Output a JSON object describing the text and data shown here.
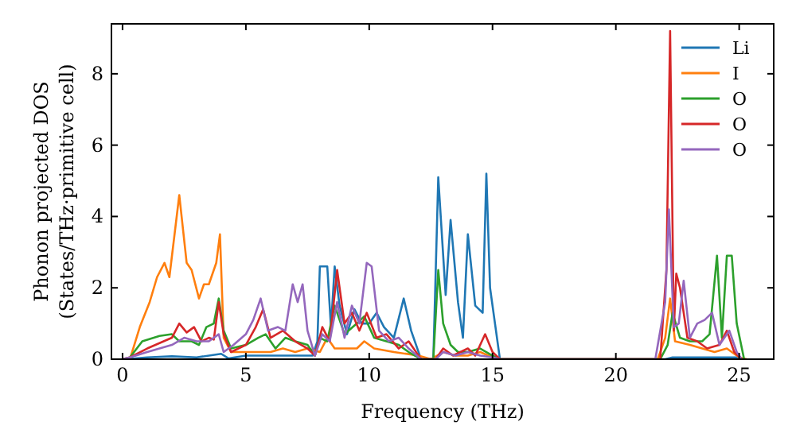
{
  "chart_data": {
    "type": "line",
    "xlabel": "Frequency (THz)",
    "ylabel": "Phonon projected DOS\n(States/THz·primitive cell)",
    "xlim": [
      -0.45,
      26.4
    ],
    "ylim": [
      0,
      9.4
    ],
    "xticks": [
      0,
      5,
      10,
      15,
      20,
      25
    ],
    "yticks": [
      0,
      2,
      4,
      6,
      8
    ],
    "grid": false,
    "legend": "top right",
    "line_style": "solid",
    "series": [
      {
        "name": "Li",
        "color": "#1f77b4",
        "x": [
          0,
          0.5,
          1,
          2,
          3,
          4,
          4.3,
          5,
          6,
          7,
          7.7,
          7.9,
          8.0,
          8.3,
          8.45,
          8.6,
          8.8,
          9.1,
          9.4,
          9.7,
          10,
          10.3,
          10.6,
          11,
          11.4,
          11.7,
          12.1,
          12.6,
          12.8,
          13.1,
          13.3,
          13.6,
          13.8,
          14.0,
          14.3,
          14.6,
          14.75,
          14.9,
          15.1,
          15.3,
          22,
          22.3,
          25,
          25.2
        ],
        "values": [
          0,
          0.02,
          0.05,
          0.08,
          0.05,
          0.15,
          0.02,
          0.1,
          0.1,
          0.1,
          0.1,
          0.5,
          2.6,
          2.6,
          0.9,
          2.6,
          1.5,
          0.7,
          1.4,
          1.0,
          1.0,
          1.3,
          0.9,
          0.6,
          1.7,
          0.8,
          0,
          0,
          5.1,
          1.8,
          3.9,
          1.6,
          0.6,
          3.5,
          1.5,
          1.3,
          5.2,
          2.0,
          1.0,
          0,
          0,
          0.05,
          0.05,
          0
        ]
      },
      {
        "name": "I",
        "color": "#ff7f0e",
        "x": [
          0,
          0.3,
          0.7,
          1.1,
          1.4,
          1.7,
          1.9,
          2.3,
          2.6,
          2.8,
          3.1,
          3.3,
          3.5,
          3.8,
          3.95,
          4.1,
          4.4,
          5,
          6,
          6.5,
          7,
          7.5,
          8,
          8.3,
          8.6,
          9,
          9.5,
          9.8,
          10.2,
          11,
          12,
          12.5,
          13,
          13.5,
          14,
          14.5,
          15,
          15.3,
          21.7,
          22,
          22.2,
          22.4,
          23,
          23.5,
          24,
          24.5,
          25,
          25.3
        ],
        "values": [
          0,
          0,
          0.9,
          1.6,
          2.3,
          2.7,
          2.3,
          4.6,
          2.7,
          2.5,
          1.7,
          2.1,
          2.1,
          2.7,
          3.5,
          0.6,
          0.2,
          0.2,
          0.2,
          0.3,
          0.2,
          0.3,
          0.2,
          0.6,
          0.3,
          0.3,
          0.3,
          0.5,
          0.3,
          0.2,
          0.1,
          0,
          0.2,
          0.1,
          0.1,
          0.2,
          0.05,
          0,
          0,
          0.6,
          1.7,
          0.5,
          0.4,
          0.3,
          0.2,
          0.3,
          0.05,
          0
        ]
      },
      {
        "name": "O",
        "color": "#2ca02c",
        "x": [
          0,
          0.3,
          0.8,
          1.5,
          2,
          2.3,
          2.8,
          3.1,
          3.4,
          3.7,
          3.9,
          4.1,
          4.4,
          5,
          5.5,
          5.8,
          6.2,
          6.6,
          7,
          7.5,
          7.8,
          8,
          8.3,
          8.6,
          9,
          9.5,
          9.8,
          10.2,
          10.7,
          11.2,
          11.6,
          12.1,
          12.6,
          12.8,
          13,
          13.3,
          13.6,
          14,
          14.5,
          15,
          15.3,
          21.8,
          22.1,
          22.3,
          22.6,
          23,
          23.5,
          23.8,
          24.1,
          24.3,
          24.5,
          24.7,
          24.9,
          25.2
        ],
        "values": [
          0,
          0.05,
          0.5,
          0.65,
          0.7,
          0.5,
          0.5,
          0.4,
          0.9,
          1.0,
          1.7,
          0.8,
          0.3,
          0.4,
          0.6,
          0.7,
          0.3,
          0.6,
          0.5,
          0.4,
          0.1,
          0.6,
          0.5,
          1.5,
          0.7,
          1.0,
          1.2,
          0.6,
          0.5,
          0.4,
          0.2,
          0,
          0,
          2.5,
          1.0,
          0.4,
          0.2,
          0.2,
          0.3,
          0.1,
          0,
          0,
          0.4,
          1.3,
          0.6,
          0.5,
          0.5,
          0.7,
          2.9,
          0.6,
          2.9,
          2.9,
          1.0,
          0
        ]
      },
      {
        "name": "O",
        "color": "#d62728",
        "x": [
          0,
          0.3,
          1,
          2,
          2.3,
          2.6,
          2.9,
          3.2,
          3.5,
          3.7,
          3.9,
          4.1,
          4.4,
          5,
          5.4,
          5.7,
          6,
          6.5,
          7,
          7.5,
          7.8,
          8.1,
          8.4,
          8.7,
          9,
          9.3,
          9.6,
          9.9,
          10.3,
          10.7,
          11.2,
          11.6,
          12.1,
          12.7,
          13,
          13.4,
          14,
          14.3,
          14.7,
          15,
          15.3,
          21.8,
          22.05,
          22.2,
          22.35,
          22.45,
          22.6,
          22.9,
          23.3,
          23.7,
          24.2,
          24.5,
          24.8,
          25.1
        ],
        "values": [
          0,
          0.05,
          0.3,
          0.6,
          1.0,
          0.75,
          0.9,
          0.5,
          0.6,
          0.55,
          1.6,
          0.7,
          0.2,
          0.4,
          0.9,
          1.4,
          0.6,
          0.8,
          0.5,
          0.3,
          0.1,
          0.9,
          0.5,
          2.5,
          1.0,
          1.3,
          0.8,
          1.3,
          0.6,
          0.7,
          0.3,
          0.5,
          0,
          0,
          0.3,
          0.1,
          0.3,
          0.1,
          0.7,
          0.2,
          0,
          0,
          2.5,
          9.2,
          0.8,
          2.4,
          2.0,
          0.6,
          0.5,
          0.3,
          0.4,
          0.8,
          0.2,
          0
        ]
      },
      {
        "name": "O",
        "color": "#9467bd",
        "x": [
          0,
          0.3,
          1,
          2,
          2.5,
          3,
          3.5,
          3.9,
          4.1,
          4.5,
          5,
          5.3,
          5.6,
          5.9,
          6.3,
          6.6,
          6.9,
          7.1,
          7.3,
          7.5,
          7.8,
          8.1,
          8.4,
          8.7,
          9,
          9.3,
          9.6,
          9.9,
          10.1,
          10.4,
          10.8,
          11.2,
          11.6,
          12.1,
          12.7,
          13,
          13.5,
          14,
          14.5,
          15,
          15.3,
          21.6,
          22,
          22.15,
          22.35,
          22.55,
          22.75,
          23,
          23.3,
          23.6,
          23.9,
          24.2,
          24.6,
          24.9,
          25.1
        ],
        "values": [
          0,
          0.05,
          0.2,
          0.4,
          0.6,
          0.5,
          0.5,
          0.7,
          0.2,
          0.4,
          0.7,
          1.1,
          1.7,
          0.8,
          0.9,
          0.8,
          2.1,
          1.6,
          2.1,
          0.8,
          0.1,
          0.7,
          0.5,
          1.6,
          0.6,
          1.5,
          1.0,
          2.7,
          2.6,
          0.8,
          0.5,
          0.6,
          0.3,
          0,
          0,
          0.2,
          0.1,
          0.2,
          0.1,
          0.05,
          0,
          0,
          1.6,
          4.2,
          0.9,
          1.0,
          2.2,
          0.6,
          1.0,
          1.1,
          1.3,
          0.4,
          0.8,
          0.2,
          0
        ]
      }
    ]
  }
}
